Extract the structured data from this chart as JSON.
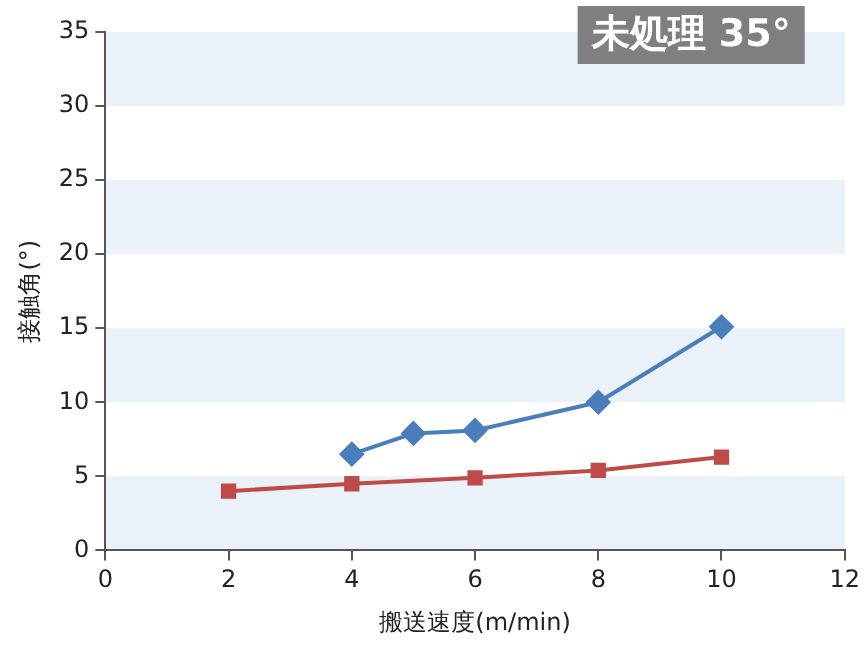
{
  "chart_data": {
    "type": "line",
    "xlabel": "搬送速度(m/min)",
    "ylabel": "接触角(°)",
    "annotations": [
      "未処理 35°"
    ],
    "xlim": [
      0,
      12
    ],
    "xticks": [
      0,
      2,
      4,
      6,
      8,
      10,
      12
    ],
    "ylim": [
      0,
      35
    ],
    "yticks": [
      0,
      5,
      10,
      15,
      20,
      25,
      30,
      35
    ],
    "legend": false,
    "bands": [
      {
        "axis": "y",
        "from": 0,
        "to": 5,
        "color": "#eaf1f9"
      },
      {
        "axis": "y",
        "from": 10,
        "to": 15,
        "color": "#eaf1f9"
      },
      {
        "axis": "y",
        "from": 20,
        "to": 25,
        "color": "#eaf1f9"
      },
      {
        "axis": "y",
        "from": 30,
        "to": 35,
        "color": "#eaf1f9"
      }
    ],
    "series": [
      {
        "color": "#4a7ebb",
        "marker": "diamond",
        "x": [
          4,
          5,
          6,
          8,
          10
        ],
        "values": [
          6.5,
          7.9,
          8.1,
          10,
          15.1
        ]
      },
      {
        "color": "#be4b48",
        "marker": "square",
        "x": [
          2,
          4,
          6,
          8,
          10
        ],
        "values": [
          4,
          4.5,
          4.9,
          5.4,
          6.3
        ]
      }
    ]
  }
}
